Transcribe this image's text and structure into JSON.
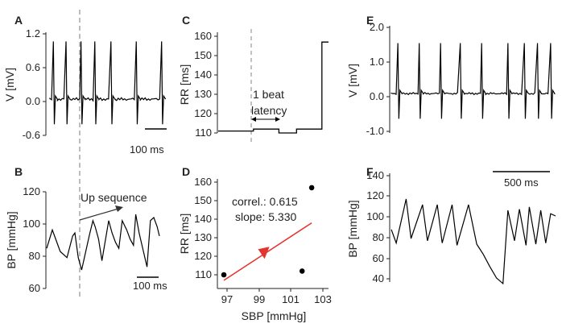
{
  "chart_data": [
    {
      "panel": "A",
      "type": "line",
      "ylabel": "V [mV]",
      "yticks": [
        "1.2",
        "0.6",
        "0.0",
        "-0.6"
      ],
      "ylim": [
        -0.72,
        1.3
      ],
      "scale_bar": "100 ms",
      "series": [
        {
          "name": "ECG",
          "spikes_x": [
            0.03,
            0.14,
            0.27,
            0.39,
            0.53,
            0.75,
            0.97
          ],
          "baseline": 0.0,
          "peak": 1.15,
          "trough": -0.5
        }
      ]
    },
    {
      "panel": "B",
      "type": "line",
      "ylabel": "BP [mmHg]",
      "yticks": [
        "120",
        "100",
        "80",
        "60"
      ],
      "ylim": [
        60,
        130
      ],
      "scale_bar": "100 ms",
      "annotation": "Up sequence",
      "series": [
        {
          "name": "BP",
          "x": [
            0,
            0.05,
            0.12,
            0.18,
            0.23,
            0.25,
            0.28,
            0.31,
            0.38,
            0.41,
            0.43,
            0.46,
            0.49,
            0.55,
            0.58,
            0.61,
            0.64,
            0.67,
            0.71,
            0.74,
            0.77,
            0.79,
            0.82,
            0.89,
            0.92,
            0.95,
            0.98,
            1.0
          ],
          "y": [
            86,
            98,
            84,
            80,
            94,
            96,
            80,
            72,
            95,
            104,
            100,
            92,
            78,
            104,
            96,
            90,
            86,
            104,
            98,
            92,
            88,
            108,
            96,
            74,
            104,
            106,
            100,
            94
          ]
        }
      ]
    },
    {
      "panel": "C",
      "type": "line",
      "ylabel": "RR [ms]",
      "yticks": [
        "160",
        "150",
        "140",
        "130",
        "120",
        "110"
      ],
      "ylim": [
        105,
        165
      ],
      "annotation": [
        "1 beat",
        "latency"
      ],
      "series": [
        {
          "name": "RR",
          "x": [
            0,
            0.32,
            0.32,
            0.55,
            0.55,
            0.71,
            0.71,
            0.94,
            0.94,
            1.0
          ],
          "y": [
            111,
            111,
            112,
            112,
            110,
            110,
            112,
            112,
            157,
            157
          ]
        }
      ]
    },
    {
      "panel": "D",
      "type": "scatter",
      "xlabel": "SBP [mmHg]",
      "ylabel": "RR [ms]",
      "xticks": [
        "97",
        "99",
        "101",
        "103"
      ],
      "yticks": [
        "160",
        "150",
        "140",
        "130",
        "120",
        "110"
      ],
      "xlim": [
        96.3,
        103.2
      ],
      "ylim": [
        105,
        165
      ],
      "points": [
        [
          96.8,
          110
        ],
        [
          101.7,
          112
        ],
        [
          102.3,
          157
        ]
      ],
      "regression": {
        "x": [
          96.8,
          102.3
        ],
        "y": [
          107,
          138
        ],
        "color": "#e3342f"
      },
      "annotation": [
        "correl.: 0.615",
        "slope: 5.330"
      ]
    },
    {
      "panel": "E",
      "type": "line",
      "ylabel": "V [mV]",
      "yticks": [
        "2.0",
        "1.0",
        "0.0",
        "-1.0"
      ],
      "ylim": [
        -1.2,
        2.1
      ],
      "series": [
        {
          "name": "ECG",
          "spikes_x": [
            0.04,
            0.17,
            0.3,
            0.42,
            0.55,
            0.71,
            0.81,
            0.89,
            0.97
          ],
          "baseline": 0.0,
          "peak": 1.6,
          "trough": -0.8
        }
      ]
    },
    {
      "panel": "F",
      "type": "line",
      "ylabel": "BP [mmHg]",
      "yticks": [
        "140",
        "120",
        "100",
        "80",
        "60",
        "40"
      ],
      "ylim": [
        35,
        145
      ],
      "scale_bar": "500 ms",
      "series": [
        {
          "name": "BP",
          "x": [
            0,
            0.03,
            0.09,
            0.12,
            0.19,
            0.22,
            0.28,
            0.31,
            0.37,
            0.4,
            0.47,
            0.52,
            0.56,
            0.6,
            0.64,
            0.68,
            0.71,
            0.75,
            0.78,
            0.82,
            0.84,
            0.88,
            0.91,
            0.94,
            0.97,
            1.0
          ],
          "y": [
            88,
            76,
            115,
            80,
            110,
            78,
            110,
            76,
            110,
            74,
            110,
            75,
            66,
            55,
            45,
            40,
            105,
            78,
            106,
            74,
            108,
            75,
            105,
            76,
            102,
            100
          ]
        }
      ]
    }
  ]
}
